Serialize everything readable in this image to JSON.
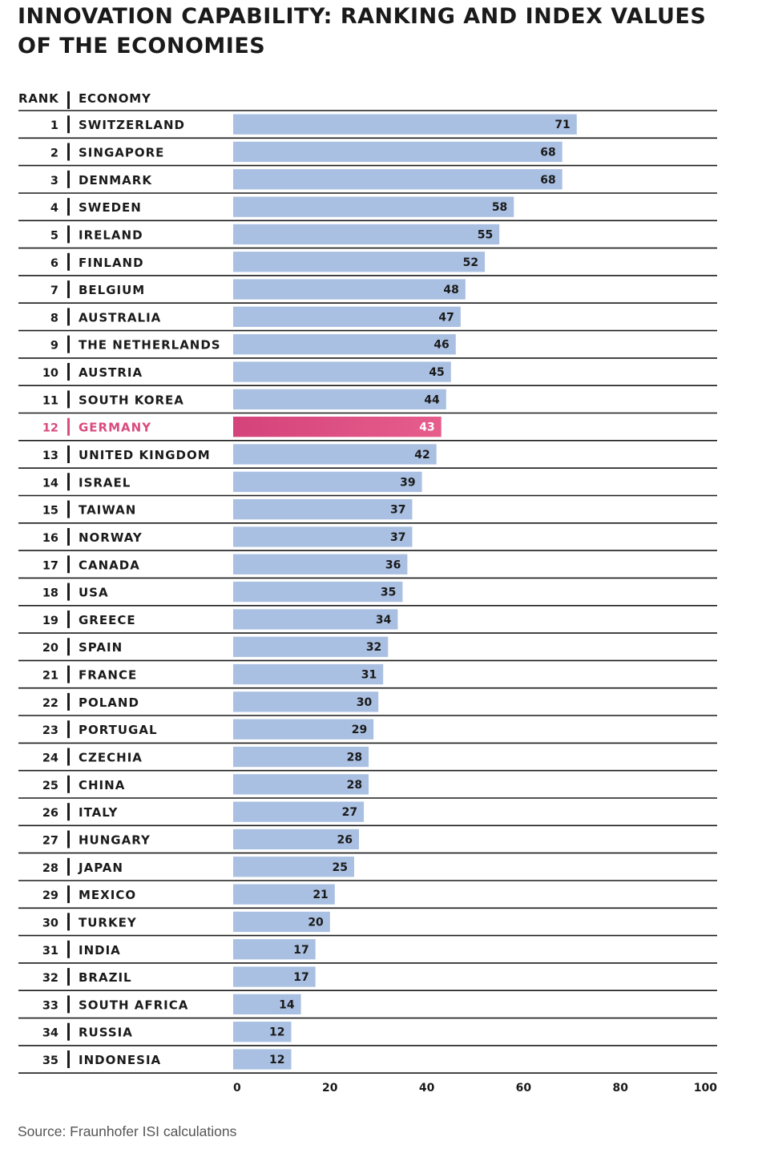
{
  "title": "INNOVATION CAPABILITY: RANKING AND INDEX VALUES OF THE ECONOMIES",
  "source": "Source: Fraunhofer ISI calculations",
  "colors": {
    "bar": "#aac0e2",
    "highlight_start": "#d4437a",
    "highlight_end": "#e65d8c",
    "highlight_text": "#d94b7e",
    "rule": "#1a1a1a"
  },
  "chart_data": {
    "type": "bar",
    "orientation": "horizontal",
    "column_headers": {
      "rank": "RANK",
      "economy": "ECONOMY"
    },
    "highlight": "GERMANY",
    "xlim": [
      0,
      100
    ],
    "x_ticks": [
      "0",
      "20",
      "40",
      "60",
      "80",
      "100"
    ],
    "ranks": [
      1,
      2,
      3,
      4,
      5,
      6,
      7,
      8,
      9,
      10,
      11,
      12,
      13,
      14,
      15,
      16,
      17,
      18,
      19,
      20,
      21,
      22,
      23,
      24,
      25,
      26,
      27,
      28,
      29,
      30,
      31,
      32,
      33,
      34,
      35
    ],
    "categories": [
      "SWITZERLAND",
      "SINGAPORE",
      "DENMARK",
      "SWEDEN",
      "IRELAND",
      "FINLAND",
      "BELGIUM",
      "AUSTRALIA",
      "THE NETHERLANDS",
      "AUSTRIA",
      "SOUTH KOREA",
      "GERMANY",
      "UNITED KINGDOM",
      "ISRAEL",
      "TAIWAN",
      "NORWAY",
      "CANADA",
      "USA",
      "GREECE",
      "SPAIN",
      "FRANCE",
      "POLAND",
      "PORTUGAL",
      "CZECHIA",
      "CHINA",
      "ITALY",
      "HUNGARY",
      "JAPAN",
      "MEXICO",
      "TURKEY",
      "INDIA",
      "BRAZIL",
      "SOUTH AFRICA",
      "RUSSIA",
      "INDONESIA"
    ],
    "values": [
      71,
      68,
      68,
      58,
      55,
      52,
      48,
      47,
      46,
      45,
      44,
      43,
      42,
      39,
      37,
      37,
      36,
      35,
      34,
      32,
      31,
      30,
      29,
      28,
      28,
      27,
      26,
      25,
      21,
      20,
      17,
      17,
      14,
      12,
      12
    ]
  }
}
